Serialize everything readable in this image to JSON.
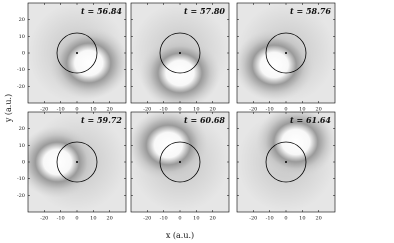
{
  "chart_data": {
    "type": "panel-grid",
    "panels": [
      {
        "title": "t = 56.84"
      },
      {
        "title": "t = 57.80"
      },
      {
        "title": "t = 58.76"
      },
      {
        "title": "t = 59.72"
      },
      {
        "title": "t = 60.68"
      },
      {
        "title": "t = 61.64"
      }
    ],
    "xlabel": "x (a.u.)",
    "ylabel": "y (a.u.)",
    "xlim": [
      -30,
      30
    ],
    "ylim": [
      -30,
      30
    ],
    "xticks": [
      -20,
      -10,
      0,
      10,
      20
    ],
    "yticks": [
      -20,
      -10,
      0,
      10,
      20
    ]
  }
}
